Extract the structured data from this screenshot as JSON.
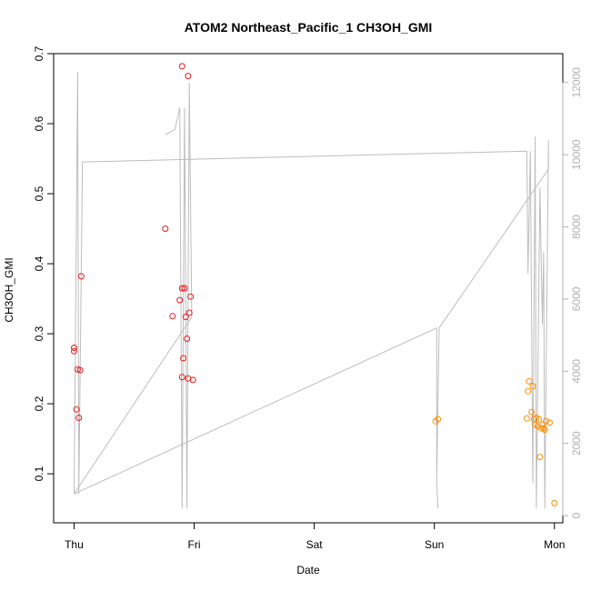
{
  "chart_data": {
    "type": "scatter",
    "title": "ATOM2 Northeast_Pacific_1 CH3OH_GMI",
    "xlabel": "Date",
    "ylabel": "CH3OH_GMI",
    "x_unit": "days",
    "x_ticks": [
      {
        "value": 0,
        "label": "Thu"
      },
      {
        "value": 1,
        "label": "Fri"
      },
      {
        "value": 2,
        "label": "Sat"
      },
      {
        "value": 3,
        "label": "Sun"
      },
      {
        "value": 4,
        "label": "Mon"
      }
    ],
    "xlim": [
      -0.17,
      4.07
    ],
    "ylim": [
      0.03,
      0.7
    ],
    "y_ticks": [
      0.1,
      0.2,
      0.3,
      0.4,
      0.5,
      0.6,
      0.7
    ],
    "y2lim": [
      -200,
      12800
    ],
    "y2_ticks": [
      0,
      2000,
      4000,
      6000,
      8000,
      10000,
      12000
    ],
    "colors": {
      "red": "#e41a1c",
      "orange": "#ff8c00",
      "altitude": "#bdbdbd"
    },
    "series": [
      {
        "color": "red",
        "points": [
          [
            0.0,
            0.28
          ],
          [
            0.0,
            0.275
          ],
          [
            0.02,
            0.192
          ],
          [
            0.03,
            0.249
          ],
          [
            0.05,
            0.248
          ],
          [
            0.04,
            0.18
          ],
          [
            0.06,
            0.382
          ],
          [
            0.76,
            0.45
          ],
          [
            0.82,
            0.325
          ],
          [
            0.88,
            0.348
          ],
          [
            0.9,
            0.365
          ],
          [
            0.92,
            0.365
          ],
          [
            0.93,
            0.324
          ],
          [
            0.91,
            0.265
          ],
          [
            0.9,
            0.238
          ],
          [
            0.94,
            0.293
          ],
          [
            0.95,
            0.236
          ],
          [
            0.96,
            0.33
          ],
          [
            0.97,
            0.353
          ],
          [
            0.99,
            0.234
          ],
          [
            0.9,
            0.682
          ],
          [
            0.95,
            0.668
          ]
        ]
      },
      {
        "color": "orange",
        "points": [
          [
            3.01,
            0.175
          ],
          [
            3.03,
            0.178
          ],
          [
            3.77,
            0.179
          ],
          [
            3.78,
            0.218
          ],
          [
            3.79,
            0.232
          ],
          [
            3.81,
            0.188
          ],
          [
            3.82,
            0.225
          ],
          [
            3.83,
            0.178
          ],
          [
            3.84,
            0.17
          ],
          [
            3.85,
            0.18
          ],
          [
            3.86,
            0.168
          ],
          [
            3.87,
            0.178
          ],
          [
            3.88,
            0.124
          ],
          [
            3.89,
            0.165
          ],
          [
            3.9,
            0.17
          ],
          [
            3.91,
            0.165
          ],
          [
            3.92,
            0.163
          ],
          [
            3.93,
            0.175
          ],
          [
            3.96,
            0.173
          ],
          [
            4.0,
            0.058
          ]
        ]
      }
    ],
    "altitude_track": [
      [
        0.0,
        600
      ],
      [
        0.03,
        12300
      ],
      [
        0.04,
        600
      ],
      [
        0.07,
        9800
      ],
      [
        3.77,
        10100
      ],
      [
        3.78,
        6700
      ],
      [
        3.8,
        10100
      ],
      [
        3.82,
        900
      ],
      [
        3.84,
        10500
      ],
      [
        3.85,
        200
      ],
      [
        3.88,
        9100
      ],
      [
        3.9,
        5300
      ],
      [
        3.91,
        7300
      ],
      [
        3.92,
        200
      ],
      [
        3.95,
        10400
      ],
      [
        3.95,
        9600
      ],
      [
        3.04,
        5200
      ],
      [
        3.02,
        1000
      ],
      [
        3.03,
        200
      ],
      [
        3.02,
        1000
      ],
      [
        3.02,
        5200
      ],
      [
        0.0,
        600
      ]
    ],
    "altitude_track_extra": [
      [
        0.76,
        10550
      ],
      [
        0.84,
        10700
      ],
      [
        0.88,
        11300
      ],
      [
        0.9,
        200
      ],
      [
        0.92,
        11300
      ],
      [
        0.94,
        200
      ],
      [
        0.96,
        12000
      ],
      [
        0.98,
        5500
      ],
      [
        0.0,
        600
      ]
    ]
  }
}
